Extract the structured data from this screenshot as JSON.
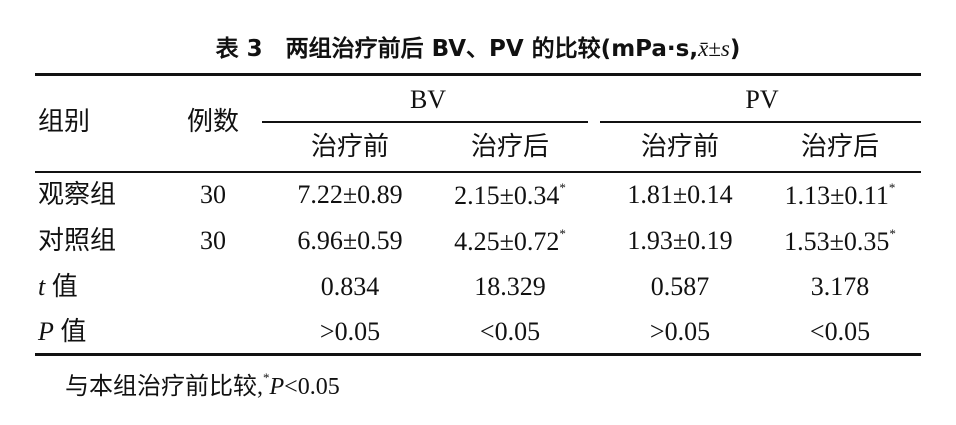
{
  "title": {
    "main": "表 3　两组治疗前后 BV、PV 的比较(mPa·s,",
    "stat": "x̄±s",
    "close": ")"
  },
  "table": {
    "header": {
      "group": "组别",
      "n": "例数",
      "bv": "BV",
      "pv": "PV",
      "sub": [
        "治疗前",
        "治疗后",
        "治疗前",
        "治疗后"
      ]
    },
    "rows": [
      {
        "label": {
          "text": "观察组"
        },
        "n": "30",
        "cells": [
          {
            "text": "7.22±0.89"
          },
          {
            "text": "2.15±0.34",
            "sup": "*"
          },
          {
            "text": "1.81±0.14"
          },
          {
            "text": "1.13±0.11",
            "sup": "*"
          }
        ]
      },
      {
        "label": {
          "text": "对照组"
        },
        "n": "30",
        "cells": [
          {
            "text": "6.96±0.59"
          },
          {
            "text": "4.25±0.72",
            "sup": "*"
          },
          {
            "text": "1.93±0.19"
          },
          {
            "text": "1.53±0.35",
            "sup": "*"
          }
        ]
      },
      {
        "label": {
          "italic": "t",
          "text": " 值"
        },
        "cells": [
          {
            "text": "0.834"
          },
          {
            "text": "18.329"
          },
          {
            "text": "0.587"
          },
          {
            "text": "3.178"
          }
        ]
      },
      {
        "label": {
          "italic": "P",
          "text": " 值"
        },
        "cells": [
          {
            "text": ">0.05"
          },
          {
            "text": "<0.05"
          },
          {
            "text": ">0.05"
          },
          {
            "text": "<0.05"
          }
        ]
      }
    ]
  },
  "footnote": {
    "text": "与本组治疗前比较,",
    "sup": "*",
    "italic": "P",
    "rest": "<0.05"
  }
}
